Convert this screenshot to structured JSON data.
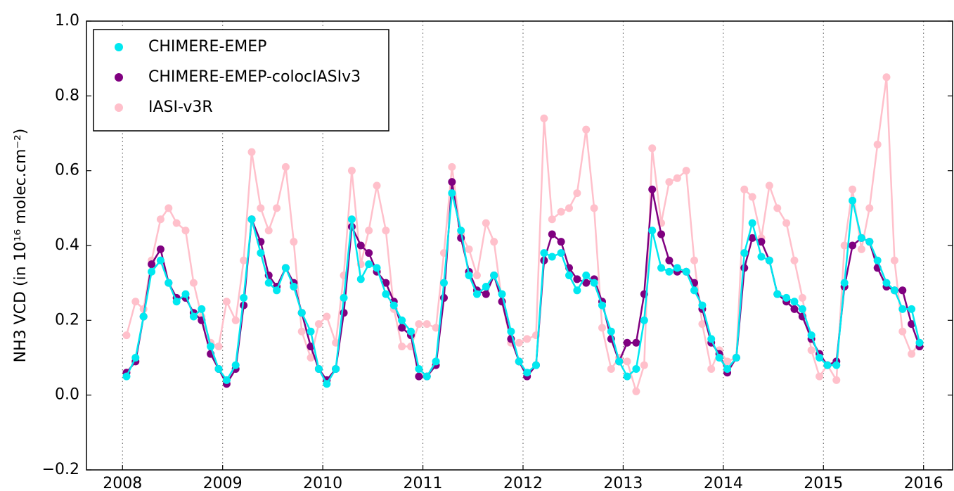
{
  "chart_data": {
    "type": "line",
    "ylabel": "NH3 VCD (in 10¹⁶ molec.cm⁻²)",
    "x": [
      2008.04,
      2008.13,
      2008.21,
      2008.29,
      2008.38,
      2008.46,
      2008.54,
      2008.63,
      2008.71,
      2008.79,
      2008.88,
      2008.96,
      2009.04,
      2009.13,
      2009.21,
      2009.29,
      2009.38,
      2009.46,
      2009.54,
      2009.63,
      2009.71,
      2009.79,
      2009.88,
      2009.96,
      2010.04,
      2010.13,
      2010.21,
      2010.29,
      2010.38,
      2010.46,
      2010.54,
      2010.63,
      2010.71,
      2010.79,
      2010.88,
      2010.96,
      2011.04,
      2011.13,
      2011.21,
      2011.29,
      2011.38,
      2011.46,
      2011.54,
      2011.63,
      2011.71,
      2011.79,
      2011.88,
      2011.96,
      2012.04,
      2012.13,
      2012.21,
      2012.29,
      2012.38,
      2012.46,
      2012.54,
      2012.63,
      2012.71,
      2012.79,
      2012.88,
      2012.96,
      2013.04,
      2013.13,
      2013.21,
      2013.29,
      2013.38,
      2013.46,
      2013.54,
      2013.63,
      2013.71,
      2013.79,
      2013.88,
      2013.96,
      2014.04,
      2014.13,
      2014.21,
      2014.29,
      2014.38,
      2014.46,
      2014.54,
      2014.63,
      2014.71,
      2014.79,
      2014.88,
      2014.96,
      2015.04,
      2015.13,
      2015.21,
      2015.29,
      2015.38,
      2015.46,
      2015.54,
      2015.63,
      2015.71,
      2015.79,
      2015.88,
      2015.96
    ],
    "series": [
      {
        "name": "CHIMERE-EMEP",
        "color": "#00e8f0",
        "values": [
          0.05,
          0.1,
          0.21,
          0.33,
          0.36,
          0.3,
          0.25,
          0.27,
          0.21,
          0.23,
          0.13,
          0.07,
          0.04,
          0.08,
          0.26,
          0.47,
          0.38,
          0.3,
          0.28,
          0.34,
          0.29,
          0.22,
          0.17,
          0.07,
          0.03,
          0.07,
          0.26,
          0.47,
          0.31,
          0.35,
          0.34,
          0.27,
          0.24,
          0.2,
          0.17,
          0.07,
          0.05,
          0.09,
          0.3,
          0.54,
          0.44,
          0.32,
          0.27,
          0.29,
          0.32,
          0.27,
          0.17,
          0.09,
          0.06,
          0.08,
          0.38,
          0.37,
          0.38,
          0.32,
          0.28,
          0.32,
          0.3,
          0.24,
          0.17,
          0.09,
          0.05,
          0.07,
          0.2,
          0.44,
          0.34,
          0.33,
          0.34,
          0.33,
          0.28,
          0.24,
          0.15,
          0.1,
          0.07,
          0.1,
          0.38,
          0.46,
          0.37,
          0.36,
          0.27,
          0.26,
          0.25,
          0.23,
          0.16,
          0.1,
          0.08,
          0.08,
          0.3,
          0.52,
          0.42,
          0.41,
          0.36,
          0.3,
          0.28,
          0.23,
          0.23,
          0.14
        ]
      },
      {
        "name": "CHIMERE-EMEP-colocIASIv3",
        "color": "#800080",
        "values": [
          0.06,
          0.09,
          0.21,
          0.35,
          0.39,
          0.3,
          0.26,
          0.26,
          0.22,
          0.2,
          0.11,
          0.07,
          0.03,
          0.07,
          0.24,
          0.47,
          0.41,
          0.32,
          0.29,
          0.34,
          0.3,
          0.22,
          0.13,
          0.07,
          0.04,
          0.07,
          0.22,
          0.45,
          0.4,
          0.38,
          0.33,
          0.3,
          0.25,
          0.18,
          0.16,
          0.05,
          0.05,
          0.08,
          0.26,
          0.57,
          0.42,
          0.33,
          0.28,
          0.27,
          0.32,
          0.25,
          0.15,
          0.09,
          0.05,
          0.08,
          0.36,
          0.43,
          0.41,
          0.34,
          0.31,
          0.3,
          0.31,
          0.25,
          0.15,
          0.09,
          0.14,
          0.14,
          0.27,
          0.55,
          0.43,
          0.36,
          0.33,
          0.33,
          0.3,
          0.23,
          0.14,
          0.11,
          0.06,
          0.1,
          0.34,
          0.42,
          0.41,
          0.36,
          0.27,
          0.25,
          0.23,
          0.21,
          0.15,
          0.11,
          0.08,
          0.09,
          0.29,
          0.4,
          0.42,
          0.41,
          0.34,
          0.29,
          0.28,
          0.28,
          0.19,
          0.13
        ]
      },
      {
        "name": "IASI-v3R",
        "color": "#ffc0cb",
        "values": [
          0.16,
          0.25,
          0.23,
          0.36,
          0.47,
          0.5,
          0.46,
          0.44,
          0.3,
          0.21,
          0.14,
          0.13,
          0.25,
          0.2,
          0.36,
          0.65,
          0.5,
          0.44,
          0.5,
          0.61,
          0.41,
          0.17,
          0.1,
          0.19,
          0.21,
          0.14,
          0.32,
          0.6,
          0.35,
          0.44,
          0.56,
          0.44,
          0.23,
          0.13,
          0.13,
          0.19,
          0.19,
          0.18,
          0.38,
          0.61,
          0.43,
          0.39,
          0.32,
          0.46,
          0.41,
          0.25,
          0.14,
          0.14,
          0.15,
          0.16,
          0.74,
          0.47,
          0.49,
          0.5,
          0.54,
          0.71,
          0.5,
          0.18,
          0.07,
          0.1,
          0.09,
          0.01,
          0.08,
          0.66,
          0.46,
          0.57,
          0.58,
          0.6,
          0.36,
          0.19,
          0.07,
          0.12,
          0.09,
          0.1,
          0.55,
          0.53,
          0.42,
          0.56,
          0.5,
          0.46,
          0.36,
          0.26,
          0.12,
          0.05,
          0.08,
          0.04,
          0.4,
          0.55,
          0.39,
          0.5,
          0.67,
          0.85,
          0.36,
          0.17,
          0.11,
          0.14
        ]
      }
    ],
    "xlim": [
      2007.64,
      2016.29
    ],
    "ylim": [
      -0.2,
      1.0
    ],
    "xticks": [
      2008,
      2009,
      2010,
      2011,
      2012,
      2013,
      2014,
      2015,
      2016
    ],
    "yticks": [
      {
        "value": -0.2,
        "label": "−0.2"
      },
      {
        "value": 0,
        "label": "0.0"
      },
      0.2,
      0.4,
      0.6,
      0.8,
      {
        "value": 1,
        "label": "1.0"
      }
    ],
    "xgrid": true,
    "legend": "upper left"
  }
}
